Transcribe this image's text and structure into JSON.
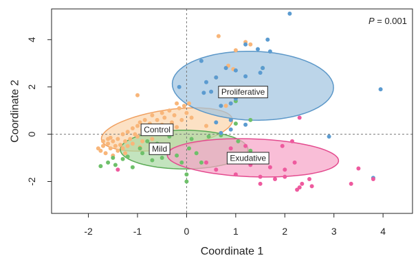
{
  "chart_data": {
    "type": "scatter",
    "xlabel": "Coordinate 1",
    "ylabel": "Coordinate 2",
    "xlim": [
      -2.75,
      4.6
    ],
    "ylim": [
      -3.35,
      5.3
    ],
    "x_ticks": [
      "-2",
      "-1",
      "0",
      "1",
      "2",
      "3",
      "4"
    ],
    "y_ticks": [
      "-2",
      "0",
      "2",
      "4"
    ],
    "reference_lines": {
      "x": 0,
      "y": 0,
      "style": "dashed"
    },
    "annotation": {
      "label": "P",
      "text": " = 0.001"
    },
    "series": [
      {
        "name": "Control",
        "color": "#f8b67a",
        "ellipse": {
          "cx": -0.4,
          "cy": 0.2,
          "rx": 1.42,
          "ry": 0.78,
          "angle_deg": 24,
          "fill": "#fbd4ab",
          "stroke": "#f0a060"
        },
        "label_pos": [
          -0.6,
          0.2
        ],
        "points": [
          [
            -1.8,
            -0.6
          ],
          [
            -1.7,
            -0.5
          ],
          [
            -1.75,
            -0.7
          ],
          [
            -1.65,
            -0.8
          ],
          [
            -1.6,
            -0.4
          ],
          [
            -1.55,
            -0.6
          ],
          [
            -1.5,
            -0.3
          ],
          [
            -1.45,
            -0.5
          ],
          [
            -1.4,
            -0.7
          ],
          [
            -1.4,
            -0.2
          ],
          [
            -1.35,
            -0.45
          ],
          [
            -1.3,
            -0.6
          ],
          [
            -1.3,
            0.0
          ],
          [
            -1.25,
            -0.3
          ],
          [
            -1.2,
            -0.5
          ],
          [
            -1.2,
            0.1
          ],
          [
            -1.15,
            -0.2
          ],
          [
            -1.1,
            0.25
          ],
          [
            -1.1,
            -0.4
          ],
          [
            -1.05,
            0.0
          ],
          [
            -1.0,
            0.35
          ],
          [
            -1.0,
            -0.1
          ],
          [
            -0.95,
            0.5
          ],
          [
            -0.9,
            0.2
          ],
          [
            -0.9,
            -0.3
          ],
          [
            -0.85,
            0.6
          ],
          [
            -0.8,
            0.1
          ],
          [
            -0.75,
            0.45
          ],
          [
            -0.7,
            -0.2
          ],
          [
            -0.7,
            0.8
          ],
          [
            -0.65,
            0.3
          ],
          [
            -0.6,
            0.6
          ],
          [
            -0.55,
            0.1
          ],
          [
            -0.5,
            0.9
          ],
          [
            -0.5,
            0.4
          ],
          [
            -0.45,
            0.7
          ],
          [
            -0.4,
            0.2
          ],
          [
            -0.35,
            1.0
          ],
          [
            -0.3,
            0.5
          ],
          [
            -0.25,
            0.8
          ],
          [
            -0.2,
            0.3
          ],
          [
            -0.15,
            1.1
          ],
          [
            -0.1,
            0.6
          ],
          [
            -0.05,
            1.2
          ],
          [
            0.0,
            0.9
          ],
          [
            0.05,
            1.3
          ],
          [
            0.1,
            0.7
          ],
          [
            -1.0,
            1.65
          ],
          [
            -0.2,
            1.3
          ],
          [
            -1.6,
            -0.2
          ],
          [
            -1.5,
            -0.9
          ],
          [
            -1.25,
            -0.8
          ],
          [
            -1.55,
            -0.15
          ],
          [
            -0.95,
            -0.55
          ],
          [
            -1.7,
            -0.3
          ],
          [
            0.65,
            4.15
          ],
          [
            0.6,
            2.4
          ],
          [
            0.85,
            2.9
          ],
          [
            0.8,
            1.2
          ],
          [
            0.9,
            1.3
          ],
          [
            0.95,
            2.75
          ],
          [
            1.0,
            3.55
          ],
          [
            1.2,
            3.9
          ],
          [
            1.3,
            3.8
          ],
          [
            0.4,
            0.35
          ],
          [
            -0.6,
            -0.5
          ]
        ]
      },
      {
        "name": "Mild",
        "color": "#6ec06a",
        "ellipse": {
          "cx": -0.05,
          "cy": -0.65,
          "rx": 1.3,
          "ry": 0.82,
          "angle_deg": 0,
          "fill": "#a9d9a2",
          "stroke": "#5aaa55"
        },
        "label_pos": [
          -0.55,
          -0.6
        ],
        "points": [
          [
            -1.75,
            -1.35
          ],
          [
            -1.6,
            -1.2
          ],
          [
            -1.45,
            -1.3
          ],
          [
            -1.3,
            -1.05
          ],
          [
            -1.2,
            -0.95
          ],
          [
            -1.1,
            -1.4
          ],
          [
            -0.95,
            -0.6
          ],
          [
            -0.9,
            -0.8
          ],
          [
            -0.8,
            -0.3
          ],
          [
            -0.7,
            -1.1
          ],
          [
            -0.6,
            -0.4
          ],
          [
            -0.5,
            -1.0
          ],
          [
            -0.4,
            -0.7
          ],
          [
            -0.35,
            -0.1
          ],
          [
            -0.2,
            -0.9
          ],
          [
            -0.1,
            -1.2
          ],
          [
            0.0,
            -2.0
          ],
          [
            0.05,
            -0.6
          ],
          [
            0.2,
            -0.8
          ],
          [
            0.3,
            -1.2
          ],
          [
            -1.5,
            -1.0
          ],
          [
            0.1,
            -0.2
          ],
          [
            0.0,
            -1.7
          ],
          [
            1.05,
            -0.3
          ],
          [
            1.3,
            -0.7
          ],
          [
            1.0,
            0.45
          ],
          [
            1.3,
            0.6
          ],
          [
            0.45,
            -0.1
          ],
          [
            1.55,
            2.8
          ],
          [
            1.0,
            1.4
          ],
          [
            0.7,
            -0.05
          ],
          [
            0.9,
            -1.0
          ]
        ]
      },
      {
        "name": "Proliferative",
        "color": "#5b9bd0",
        "ellipse": {
          "cx": 1.35,
          "cy": 2.05,
          "rx": 1.45,
          "ry": 1.65,
          "angle_deg": 78,
          "fill": "#9fc3e0",
          "stroke": "#5b97c8"
        },
        "label_pos": [
          1.15,
          1.8
        ],
        "points": [
          [
            2.1,
            5.1
          ],
          [
            1.65,
            4.0
          ],
          [
            1.2,
            3.8
          ],
          [
            1.45,
            3.6
          ],
          [
            1.7,
            3.5
          ],
          [
            0.3,
            3.1
          ],
          [
            0.6,
            2.4
          ],
          [
            0.8,
            2.8
          ],
          [
            1.0,
            2.7
          ],
          [
            1.2,
            2.45
          ],
          [
            1.5,
            2.6
          ],
          [
            1.55,
            2.8
          ],
          [
            0.4,
            2.2
          ],
          [
            0.5,
            1.8
          ],
          [
            0.7,
            1.2
          ],
          [
            0.9,
            1.3
          ],
          [
            1.0,
            1.5
          ],
          [
            -0.15,
            2.0
          ],
          [
            0.35,
            1.75
          ],
          [
            0.6,
            0.5
          ],
          [
            0.9,
            0.6
          ],
          [
            1.2,
            0.4
          ],
          [
            0.7,
            0.05
          ],
          [
            2.9,
            -0.1
          ],
          [
            3.95,
            1.9
          ],
          [
            3.8,
            -1.85
          ],
          [
            0.9,
            0.2
          ]
        ]
      },
      {
        "name": "Exudative",
        "color": "#ee5a9e",
        "ellipse": {
          "cx": 1.35,
          "cy": -1.0,
          "rx": 1.75,
          "ry": 0.8,
          "angle_deg": -5,
          "fill": "#f6a2c6",
          "stroke": "#e34a8e"
        },
        "label_pos": [
          1.25,
          -1.0
        ],
        "points": [
          [
            0.4,
            -1.2
          ],
          [
            0.6,
            -1.5
          ],
          [
            0.9,
            -0.6
          ],
          [
            1.0,
            -1.7
          ],
          [
            1.1,
            -0.9
          ],
          [
            1.3,
            -1.3
          ],
          [
            1.5,
            -1.8
          ],
          [
            1.5,
            -2.1
          ],
          [
            1.7,
            -1.4
          ],
          [
            1.8,
            -1.9
          ],
          [
            2.0,
            -1.5
          ],
          [
            2.0,
            -1.8
          ],
          [
            2.2,
            -1.2
          ],
          [
            2.25,
            -2.35
          ],
          [
            2.3,
            -2.25
          ],
          [
            2.35,
            -2.1
          ],
          [
            2.5,
            -1.9
          ],
          [
            2.55,
            -2.2
          ],
          [
            2.15,
            -0.3
          ],
          [
            1.95,
            -0.5
          ],
          [
            2.3,
            0.7
          ],
          [
            3.35,
            -2.1
          ],
          [
            3.5,
            -1.45
          ],
          [
            3.8,
            -1.9
          ],
          [
            1.2,
            -0.5
          ],
          [
            -1.4,
            -1.5
          ]
        ]
      }
    ]
  }
}
